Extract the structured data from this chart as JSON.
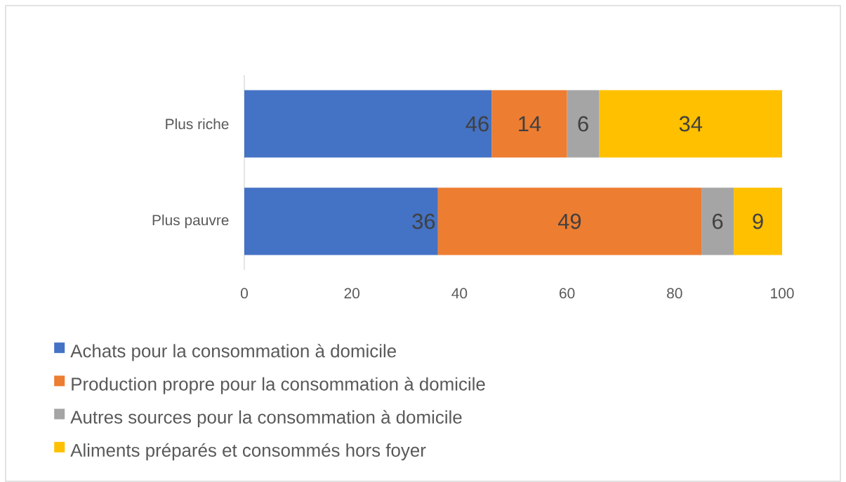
{
  "chart_data": {
    "type": "bar",
    "orientation": "horizontal",
    "stacked": true,
    "categories": [
      "Plus riche",
      "Plus pauvre"
    ],
    "series": [
      {
        "name": "Achats pour la consommation à domicile",
        "color": "#4472c4",
        "values": [
          46,
          36
        ]
      },
      {
        "name": "Production propre pour la consommation à domicile",
        "color": "#ed7d31",
        "values": [
          14,
          49
        ]
      },
      {
        "name": "Autres sources pour la consommation à domicile",
        "color": "#a5a5a5",
        "values": [
          6,
          6
        ]
      },
      {
        "name": "Aliments préparés et consommés hors foyer",
        "color": "#ffc000",
        "values": [
          34,
          9
        ]
      }
    ],
    "xlim": [
      0,
      100
    ],
    "xticks": [
      0,
      20,
      40,
      60,
      80,
      100
    ],
    "data_labels": true,
    "legend": "bottom left"
  }
}
